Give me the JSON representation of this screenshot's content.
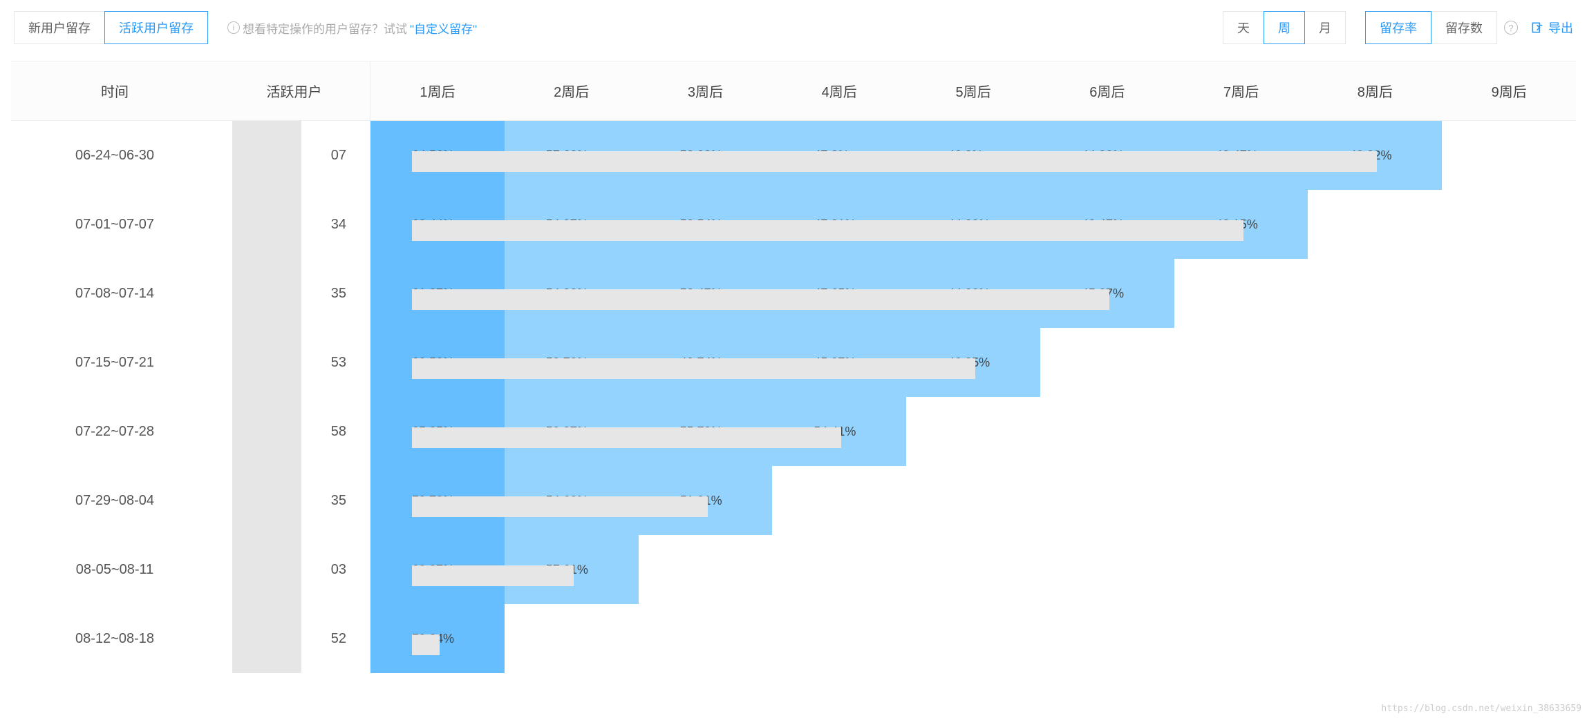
{
  "tabs": {
    "new_user": "新用户留存",
    "active_user": "活跃用户留存",
    "active_selected": true
  },
  "hint": {
    "prefix": "想看特定操作的用户留存？试试",
    "link_text": "\"自定义留存\""
  },
  "granularity": {
    "day": "天",
    "week": "周",
    "month": "月",
    "week_selected": true
  },
  "metric": {
    "rate": "留存率",
    "count": "留存数",
    "rate_selected": true
  },
  "export_label": "导出",
  "table": {
    "header": {
      "time": "时间",
      "active_users": "活跃用户",
      "weeks": [
        "1周后",
        "2周后",
        "3周后",
        "4周后",
        "5周后",
        "6周后",
        "7周后",
        "8周后",
        "9周后"
      ]
    },
    "style": {
      "week_col_count": 9,
      "shade_dark": "#66beff",
      "shade_light": "#93d3fe",
      "redact_color": "#e6e6e6",
      "text_color": "#444444"
    },
    "rows": [
      {
        "date": "06-24~06-30",
        "active_tail": "07",
        "cells": [
          {
            "value": "64.56%",
            "shade": "dark"
          },
          {
            "value": "57.68%",
            "shade": "light"
          },
          {
            "value": "53.08%",
            "shade": "light"
          },
          {
            "value": "47.2%",
            "shade": "light"
          },
          {
            "value": "46.2%",
            "shade": "light"
          },
          {
            "value": "44.33%",
            "shade": "light"
          },
          {
            "value": "43.47%",
            "shade": "light"
          },
          {
            "value": "42.32%",
            "shade": "light"
          }
        ],
        "redact_span": 7
      },
      {
        "date": "07-01~07-07",
        "active_tail": "34",
        "cells": [
          {
            "value": "63.44%",
            "shade": "dark"
          },
          {
            "value": "54.97%",
            "shade": "light"
          },
          {
            "value": "50.54%",
            "shade": "light"
          },
          {
            "value": "47.31%",
            "shade": "light"
          },
          {
            "value": "44.89%",
            "shade": "light"
          },
          {
            "value": "43.47%",
            "shade": "light"
          },
          {
            "value": "42.15%",
            "shade": "light"
          }
        ],
        "redact_span": 6
      },
      {
        "date": "07-08~07-14",
        "active_tail": "35",
        "cells": [
          {
            "value": "61.07%",
            "shade": "dark"
          },
          {
            "value": "54.00%",
            "shade": "light"
          },
          {
            "value": "50.47%",
            "shade": "light"
          },
          {
            "value": "47.65%",
            "shade": "light"
          },
          {
            "value": "44.83%",
            "shade": "light"
          },
          {
            "value": "45.27%",
            "shade": "light"
          }
        ],
        "redact_span": 5
      },
      {
        "date": "07-15~07-21",
        "active_tail": "53",
        "cells": [
          {
            "value": "60.50%",
            "shade": "dark"
          },
          {
            "value": "53.70%",
            "shade": "light"
          },
          {
            "value": "49.74%",
            "shade": "light"
          },
          {
            "value": "45.97%",
            "shade": "light"
          },
          {
            "value": "46.05%",
            "shade": "light"
          }
        ],
        "redact_span": 4
      },
      {
        "date": "07-22~07-28",
        "active_tail": "58",
        "cells": [
          {
            "value": "65.05%",
            "shade": "dark"
          },
          {
            "value": "58.07%",
            "shade": "light"
          },
          {
            "value": "55.70%",
            "shade": "light"
          },
          {
            "value": "54.41%",
            "shade": "light"
          }
        ],
        "redact_span": 3
      },
      {
        "date": "07-29~08-04",
        "active_tail": "35",
        "cells": [
          {
            "value": "59.72%",
            "shade": "dark"
          },
          {
            "value": "54.60%",
            "shade": "light"
          },
          {
            "value": "51.81%",
            "shade": "light"
          }
        ],
        "redact_span": 2
      },
      {
        "date": "08-05~08-11",
        "active_tail": "03",
        "cells": [
          {
            "value": "63.97%",
            "shade": "dark"
          },
          {
            "value": "57.61%",
            "shade": "light"
          }
        ],
        "redact_span": 1
      },
      {
        "date": "08-12~08-18",
        "active_tail": "52",
        "cells": [
          {
            "value": "59.84%",
            "shade": "dark"
          }
        ],
        "redact_span": 0
      }
    ]
  },
  "watermark": "https://blog.csdn.net/weixin_38633659"
}
